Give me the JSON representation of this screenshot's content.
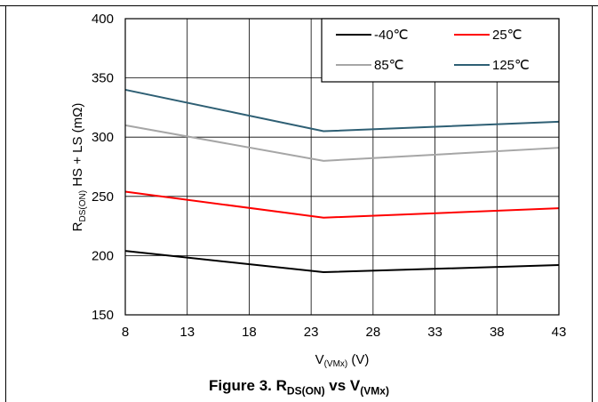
{
  "caption": {
    "prefix": "Figure 3. R",
    "sub1": "DS(ON)",
    "middle": " vs V",
    "sub2": "(VMx)"
  },
  "chart_data": {
    "type": "line",
    "xlabel": {
      "main": "V",
      "sub": "(VMx)",
      "unit": " (V)"
    },
    "ylabel": {
      "main": "R",
      "sub": "DS(ON)",
      "rest": " HS + LS (mΩ)"
    },
    "xlim": [
      8,
      43
    ],
    "ylim": [
      150,
      400
    ],
    "xticks": [
      8,
      13,
      18,
      23,
      28,
      33,
      38,
      43
    ],
    "yticks": [
      150,
      200,
      250,
      300,
      350,
      400
    ],
    "grid": true,
    "legend_position": "top-right",
    "series": [
      {
        "name": "-40℃",
        "color": "#000000",
        "x": [
          8,
          24,
          43
        ],
        "y": [
          204,
          186,
          192
        ]
      },
      {
        "name": "25℃",
        "color": "#ff0000",
        "x": [
          8,
          24,
          43
        ],
        "y": [
          254,
          232,
          240
        ]
      },
      {
        "name": "85℃",
        "color": "#a6a6a6",
        "x": [
          8,
          24,
          43
        ],
        "y": [
          310,
          280,
          291
        ]
      },
      {
        "name": "125℃",
        "color": "#2e5f74",
        "x": [
          8,
          24,
          43
        ],
        "y": [
          340,
          305,
          313
        ]
      }
    ]
  }
}
